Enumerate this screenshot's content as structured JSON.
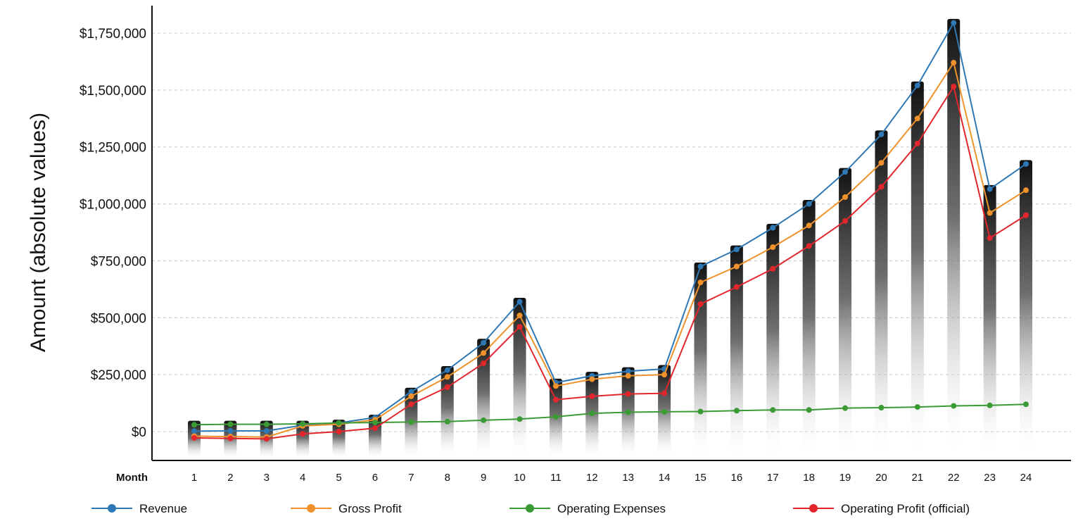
{
  "chart_data": {
    "type": "line",
    "title": "",
    "xlabel": "Month",
    "ylabel": "Amount (absolute values)",
    "ylim": [
      -120000,
      1850000
    ],
    "yticks": [
      0,
      250000,
      500000,
      750000,
      1000000,
      1250000,
      1500000,
      1750000
    ],
    "ytick_labels": [
      "$0",
      "$250,000",
      "$500,000",
      "$750,000",
      "$1,000,000",
      "$1,250,000",
      "$1,500,000",
      "$1,750,000"
    ],
    "categories": [
      "1",
      "2",
      "3",
      "4",
      "5",
      "6",
      "7",
      "8",
      "9",
      "10",
      "11",
      "12",
      "13",
      "14",
      "15",
      "16",
      "17",
      "18",
      "19",
      "20",
      "21",
      "22",
      "23",
      "24"
    ],
    "grid": true,
    "legend_position": "bottom",
    "bars": {
      "description_values": [
        35000,
        35000,
        35000,
        35000,
        40000,
        62000,
        180000,
        275000,
        395000,
        575000,
        220000,
        250000,
        270000,
        280000,
        730000,
        805000,
        900000,
        1005000,
        1145000,
        1310000,
        1525000,
        1800000,
        1070000,
        1180000
      ],
      "bottom": -120000,
      "color": "#1a1a1a"
    },
    "series": [
      {
        "name": "Revenue",
        "color": "#2e78b5",
        "values": [
          2000,
          3000,
          3000,
          28000,
          38000,
          62000,
          175000,
          270000,
          390000,
          570000,
          215000,
          245000,
          265000,
          275000,
          725000,
          800000,
          895000,
          1000000,
          1140000,
          1305000,
          1520000,
          1795000,
          1065000,
          1175000
        ]
      },
      {
        "name": "Gross Profit",
        "color": "#f0922c",
        "values": [
          -20000,
          -22000,
          -24000,
          25000,
          32000,
          52000,
          155000,
          240000,
          345000,
          510000,
          200000,
          230000,
          245000,
          250000,
          655000,
          725000,
          810000,
          905000,
          1030000,
          1180000,
          1375000,
          1620000,
          960000,
          1060000
        ]
      },
      {
        "name": "Operating Expenses",
        "color": "#3a9a34",
        "values": [
          30000,
          32000,
          32000,
          34000,
          38000,
          40000,
          42000,
          44000,
          50000,
          55000,
          65000,
          80000,
          85000,
          87000,
          88000,
          92000,
          95000,
          95000,
          103000,
          105000,
          108000,
          113000,
          115000,
          120000
        ]
      },
      {
        "name": "Operating Profit (official)",
        "color": "#e3262c",
        "values": [
          -28000,
          -30000,
          -32000,
          -10000,
          0,
          15000,
          120000,
          195000,
          300000,
          460000,
          140000,
          155000,
          165000,
          168000,
          560000,
          635000,
          715000,
          815000,
          925000,
          1075000,
          1265000,
          1515000,
          850000,
          950000
        ]
      }
    ]
  }
}
